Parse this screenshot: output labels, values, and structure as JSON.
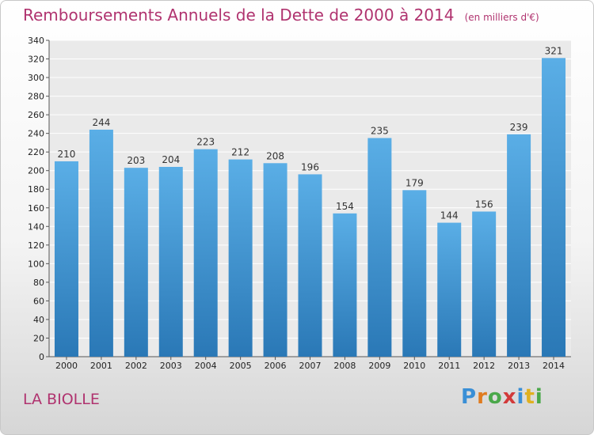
{
  "header": {
    "title": "Remboursements Annuels de la Dette de 2000 à 2014",
    "unit": "(en milliers d'€)"
  },
  "footer": {
    "place": "LA BIOLLE",
    "logo_text": "Proxiti"
  },
  "colors": {
    "bar_top": "#5aaee6",
    "bar_bottom": "#2a78b6",
    "title": "#b0336f",
    "grid": "#ffffff"
  },
  "chart_data": {
    "type": "bar",
    "title": "Remboursements Annuels de la Dette de 2000 à 2014",
    "xlabel": "",
    "ylabel": "",
    "categories": [
      "2000",
      "2001",
      "2002",
      "2003",
      "2004",
      "2005",
      "2006",
      "2007",
      "2008",
      "2009",
      "2010",
      "2011",
      "2012",
      "2013",
      "2014"
    ],
    "values": [
      210,
      244,
      203,
      204,
      223,
      212,
      208,
      196,
      154,
      235,
      179,
      144,
      156,
      239,
      321
    ],
    "ylim": [
      0,
      340
    ],
    "yticks": [
      0,
      20,
      40,
      60,
      80,
      100,
      120,
      140,
      160,
      180,
      200,
      220,
      240,
      260,
      280,
      300,
      320,
      340
    ],
    "grid": true,
    "data_labels": true
  }
}
